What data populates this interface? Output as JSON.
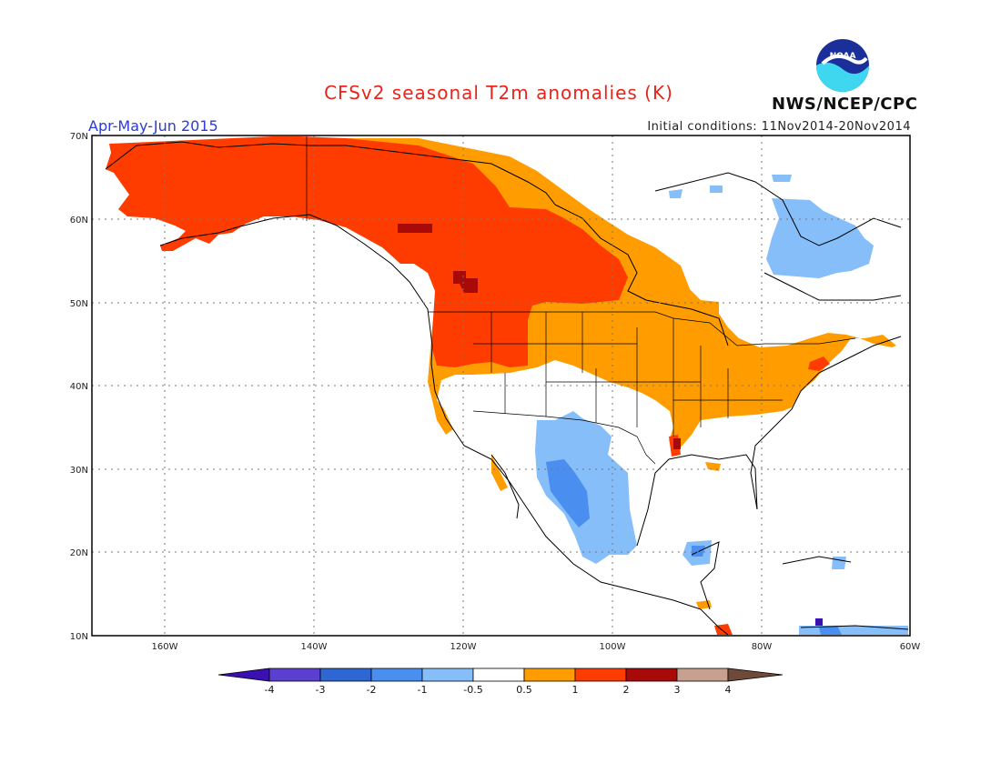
{
  "title": "CFSv2 seasonal T2m anomalies (K)",
  "period": "Apr-May-Jun 2015",
  "initial_conditions": "Initial conditions: 11Nov2014-20Nov2014",
  "agency": "NWS/NCEP/CPC",
  "logo_text": "NOAA",
  "lat_labels": [
    "70N",
    "60N",
    "50N",
    "40N",
    "30N",
    "20N",
    "10N"
  ],
  "lon_labels": [
    "160W",
    "140W",
    "120W",
    "100W",
    "80W",
    "60W"
  ],
  "colorbar": {
    "labels": [
      "-4",
      "-3",
      "-2",
      "-1",
      "-0.5",
      "0.5",
      "1",
      "2",
      "3",
      "4"
    ],
    "colors": [
      "#3a10b0",
      "#5a3fd0",
      "#2e66d4",
      "#4a8ef0",
      "#86befa",
      "#ffffff",
      "#ff9d00",
      "#ff3c00",
      "#a80a0a",
      "#c8a090",
      "#6e4a3a"
    ]
  }
}
